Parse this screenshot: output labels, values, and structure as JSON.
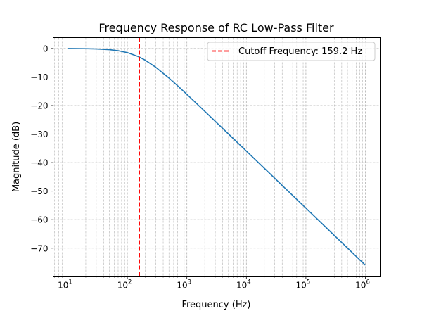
{
  "chart_data": {
    "type": "line",
    "title": "Frequency Response of RC Low-Pass Filter",
    "xlabel": "Frequency (Hz)",
    "ylabel": "Magnitude (dB)",
    "x_scale": "log",
    "xlim": [
      5.65,
      1770000
    ],
    "ylim": [
      -79.8,
      3.8
    ],
    "grid": true,
    "grid_style": "dashed, major and minor",
    "x_ticks": [
      {
        "base": "10",
        "exp": "1",
        "value": 10
      },
      {
        "base": "10",
        "exp": "2",
        "value": 100
      },
      {
        "base": "10",
        "exp": "3",
        "value": 1000
      },
      {
        "base": "10",
        "exp": "4",
        "value": 10000
      },
      {
        "base": "10",
        "exp": "5",
        "value": 100000
      },
      {
        "base": "10",
        "exp": "6",
        "value": 1000000
      }
    ],
    "y_ticks": [
      {
        "label": "0",
        "value": 0
      },
      {
        "label": "−10",
        "value": -10
      },
      {
        "label": "−20",
        "value": -20
      },
      {
        "label": "−30",
        "value": -30
      },
      {
        "label": "−40",
        "value": -40
      },
      {
        "label": "−50",
        "value": -50
      },
      {
        "label": "−60",
        "value": -60
      },
      {
        "label": "−70",
        "value": -70
      }
    ],
    "series": [
      {
        "color": "#1f77b4",
        "x": [
          10,
          20,
          30,
          50,
          70,
          100,
          150,
          159.2,
          200,
          300,
          500,
          700,
          1000,
          2000,
          5000,
          10000,
          20000,
          50000,
          100000,
          200000,
          500000,
          1000000
        ],
        "y": [
          -0.017,
          -0.068,
          -0.15,
          -0.41,
          -0.77,
          -1.44,
          -2.76,
          -3.01,
          -4.11,
          -6.58,
          -10.36,
          -13.08,
          -16.07,
          -22.01,
          -29.95,
          -35.96,
          -41.98,
          -49.94,
          -55.96,
          -61.98,
          -69.94,
          -75.96
        ]
      }
    ],
    "vline": {
      "x": 159.2,
      "color": "#ff0000",
      "style": "dashed"
    },
    "legend": {
      "placement": "top-right",
      "entries": [
        {
          "label": "Cutoff Frequency: 159.2 Hz",
          "color": "#ff0000",
          "style": "dashed"
        }
      ]
    }
  }
}
